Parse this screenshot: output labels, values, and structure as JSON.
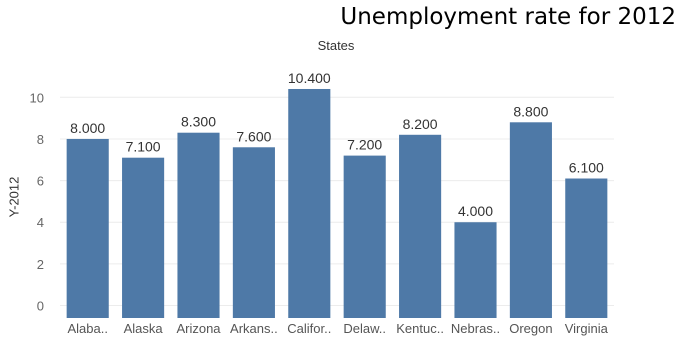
{
  "chart_data": {
    "type": "bar",
    "title": "Unemployment rate for 2012",
    "x_header": "States",
    "ylabel": "Y-2012",
    "categories": [
      "Alaba..",
      "Alaska",
      "Arizona",
      "Arkans..",
      "Califor..",
      "Delaw..",
      "Kentuc..",
      "Nebras..",
      "Oregon",
      "Virginia"
    ],
    "values": [
      8.0,
      7.1,
      8.3,
      7.6,
      10.4,
      7.2,
      8.2,
      4.0,
      8.8,
      6.1
    ],
    "value_labels": [
      "8.000",
      "7.100",
      "8.300",
      "7.600",
      "10.400",
      "7.200",
      "8.200",
      "4.000",
      "8.800",
      "6.100"
    ],
    "yticks": [
      0,
      2,
      4,
      6,
      8,
      10
    ],
    "ylim": [
      -0.6,
      11.6
    ],
    "bar_color": "#4e79a7",
    "grid": true
  }
}
